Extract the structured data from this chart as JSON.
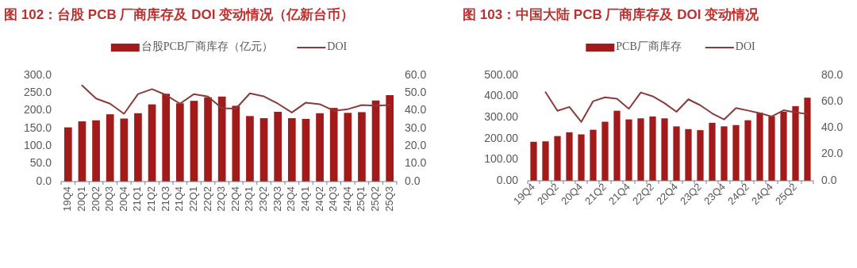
{
  "chart_data": [
    {
      "type": "bar",
      "title": "图 102：台股 PCB 厂商库存及 DOI 变动情况（亿新台币）",
      "legend": "top",
      "grid": false,
      "categories": [
        "19Q4",
        "20Q1",
        "20Q2",
        "20Q3",
        "20Q4",
        "21Q1",
        "21Q2",
        "21Q3",
        "21Q4",
        "22Q1",
        "22Q2",
        "22Q3",
        "22Q4",
        "23Q1",
        "23Q2",
        "23Q3",
        "23Q4",
        "24Q1",
        "24Q2",
        "24Q3",
        "24Q4",
        "25Q1",
        "25Q2",
        "25Q3"
      ],
      "series": [
        {
          "name": "台股PCB厂商库存（亿元）",
          "color": "#a31a1a",
          "values": [
            153,
            170,
            173,
            190,
            178,
            193,
            218,
            248,
            221,
            228,
            238,
            240,
            214,
            185,
            179,
            197,
            179,
            177,
            193,
            208,
            194,
            196,
            229,
            244
          ]
        },
        {
          "name": "DOI",
          "type": "line",
          "axis": "y2",
          "color": "#8b3a3a",
          "values": [
            null,
            54.3,
            46.9,
            44.0,
            38.3,
            49.4,
            52.2,
            48.9,
            44.0,
            49.4,
            48.0,
            41.4,
            41.2,
            49.8,
            48.1,
            44.0,
            39.0,
            44.6,
            43.7,
            40.0,
            40.9,
            43.2,
            42.9,
            43.2
          ]
        }
      ],
      "ylim": [
        0,
        300
      ],
      "yticks": [
        {
          "value": 0,
          "label": "0.0"
        },
        {
          "value": 50,
          "label": "50.0"
        },
        {
          "value": 100,
          "label": "100.0"
        },
        {
          "value": 150,
          "label": "150.0"
        },
        {
          "value": 200,
          "label": "200.0"
        },
        {
          "value": 250,
          "label": "250.0"
        },
        {
          "value": 300,
          "label": "300.0"
        }
      ],
      "y2lim": [
        0,
        60
      ],
      "y2ticks": [
        {
          "value": 0,
          "label": "0.0"
        },
        {
          "value": 10,
          "label": "10.0"
        },
        {
          "value": 20,
          "label": "20.0"
        },
        {
          "value": 30,
          "label": "30.0"
        },
        {
          "value": 40,
          "label": "40.0"
        },
        {
          "value": 50,
          "label": "50.0"
        },
        {
          "value": 60,
          "label": "60.0"
        }
      ]
    },
    {
      "type": "bar",
      "title": "图 103：中国大陆 PCB 厂商库存及 DOI 变动情况",
      "legend": "top",
      "grid": false,
      "categories": [
        "19Q4",
        null,
        "20Q2",
        null,
        "20Q4",
        null,
        "21Q2",
        null,
        "21Q4",
        null,
        "22Q2",
        null,
        "22Q4",
        null,
        "23Q2",
        null,
        "23Q4",
        null,
        "24Q2",
        null,
        "24Q4",
        null,
        "25Q2",
        null
      ],
      "series": [
        {
          "name": "PCB厂商库存",
          "color": "#a31a1a",
          "values": [
            185,
            187,
            212,
            230,
            220,
            242,
            280,
            332,
            291,
            296,
            305,
            296,
            258,
            245,
            240,
            275,
            258,
            264,
            287,
            322,
            306,
            327,
            354,
            394
          ]
        },
        {
          "name": "DOI",
          "type": "line",
          "axis": "y2",
          "color": "#8b3a3a",
          "values": [
            null,
            67.2,
            53.1,
            56.0,
            44.7,
            60.4,
            63.3,
            62.2,
            54.6,
            67.0,
            64.1,
            58.9,
            52.3,
            61.8,
            57.3,
            51.1,
            46.5,
            55.2,
            53.3,
            51.3,
            48.8,
            53.5,
            51.9,
            50.6
          ]
        }
      ],
      "ylim": [
        0,
        500
      ],
      "yticks": [
        {
          "value": 0,
          "label": "0.00"
        },
        {
          "value": 100,
          "label": "100.00"
        },
        {
          "value": 200,
          "label": "200.00"
        },
        {
          "value": 300,
          "label": "300.00"
        },
        {
          "value": 400,
          "label": "400.00"
        },
        {
          "value": 500,
          "label": "500.00"
        }
      ],
      "y2lim": [
        0,
        80
      ],
      "y2ticks": [
        {
          "value": 0,
          "label": "0.0"
        },
        {
          "value": 20,
          "label": "20.0"
        },
        {
          "value": 40,
          "label": "40.0"
        },
        {
          "value": 60,
          "label": "60.0"
        },
        {
          "value": 80,
          "label": "80.0"
        }
      ]
    }
  ]
}
